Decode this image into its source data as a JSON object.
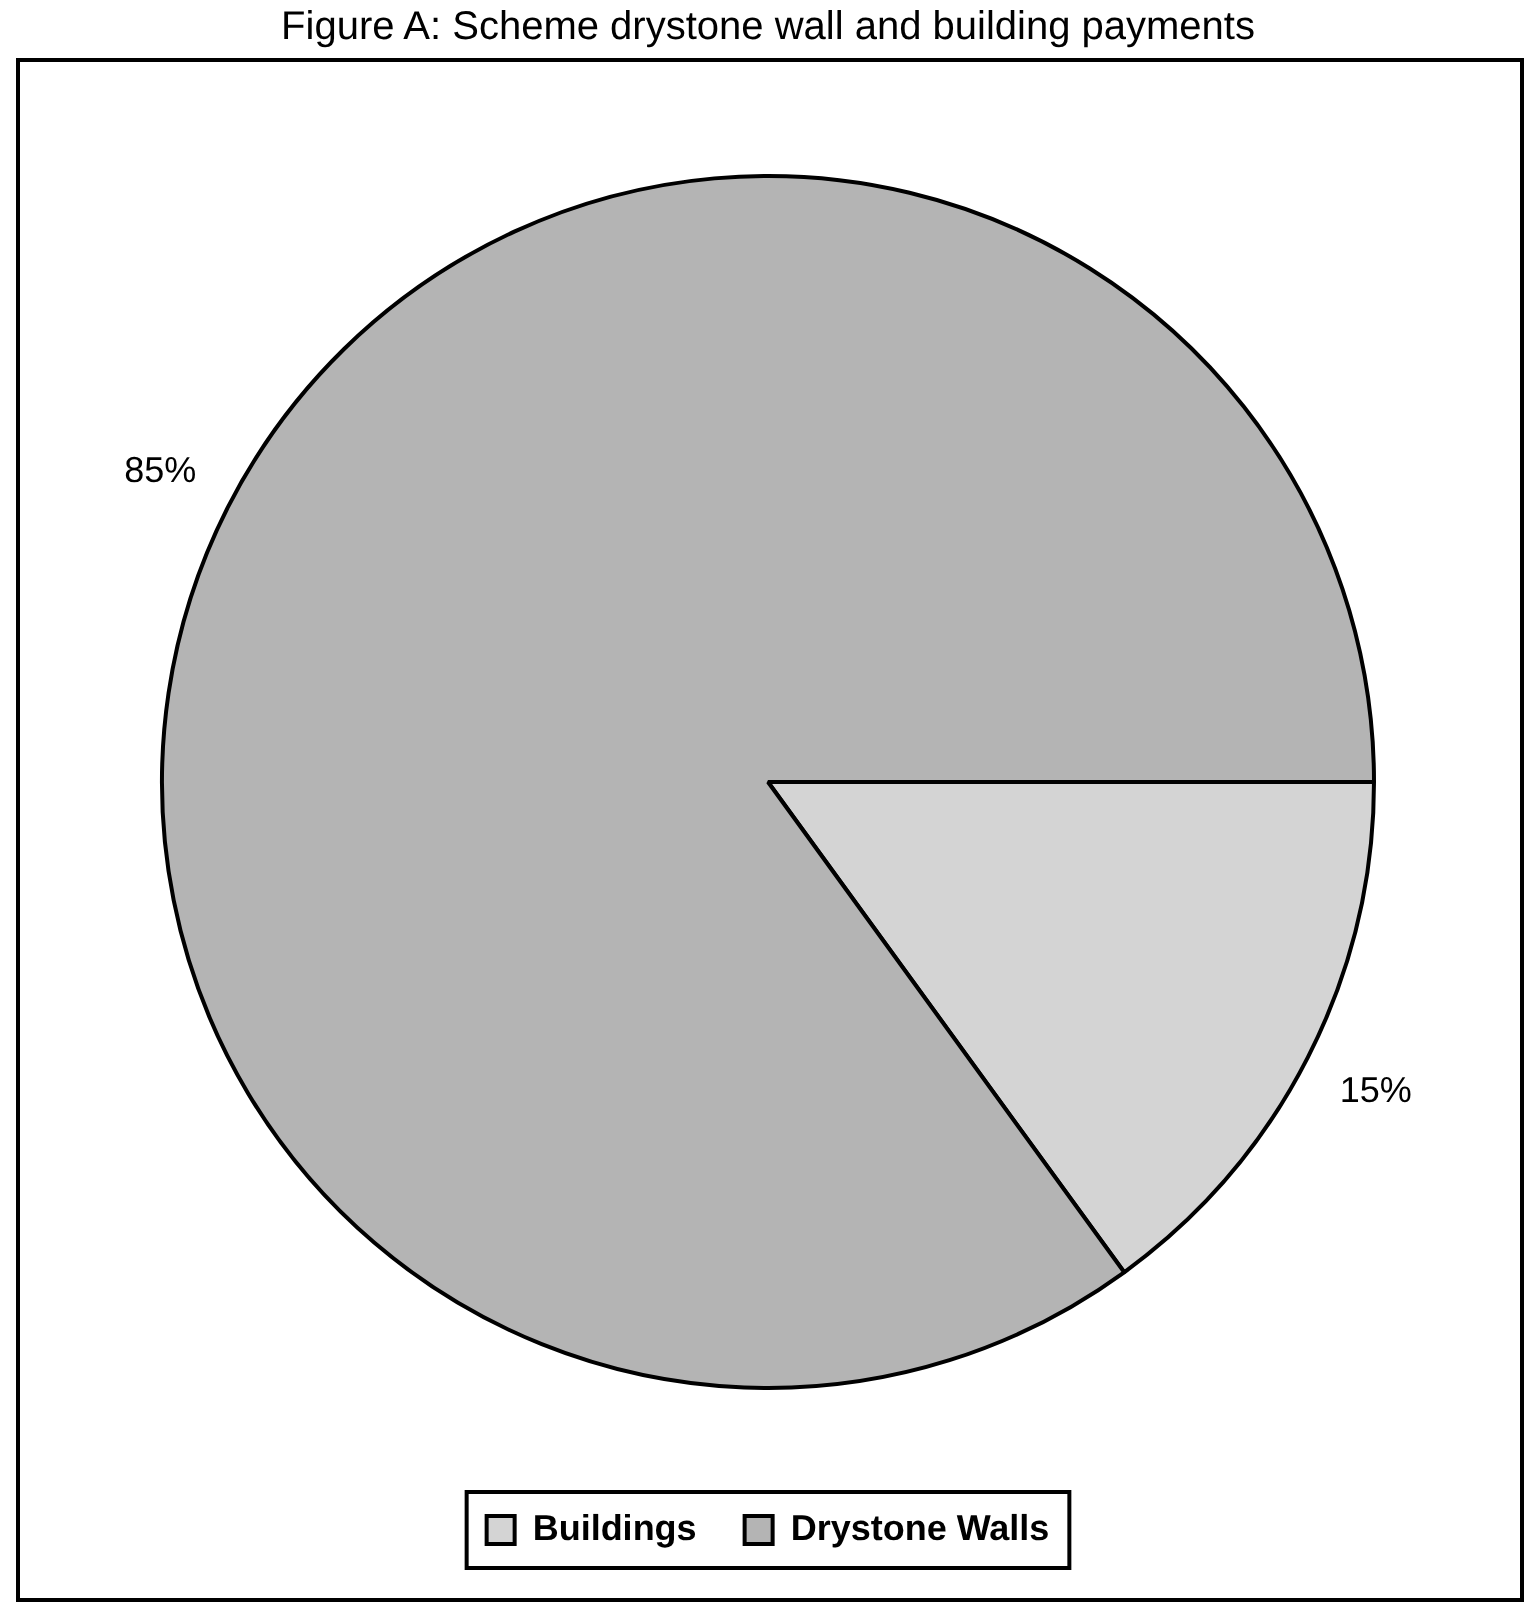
{
  "chart_data": {
    "type": "pie",
    "title": "Figure A: Scheme drystone wall and building payments",
    "categories": [
      "Buildings",
      "Drystone Walls"
    ],
    "values": [
      15,
      85
    ],
    "value_labels": [
      "15%",
      "85%"
    ],
    "colors": [
      "#d4d4d4",
      "#b4b4b4"
    ],
    "legend": "bottom"
  }
}
